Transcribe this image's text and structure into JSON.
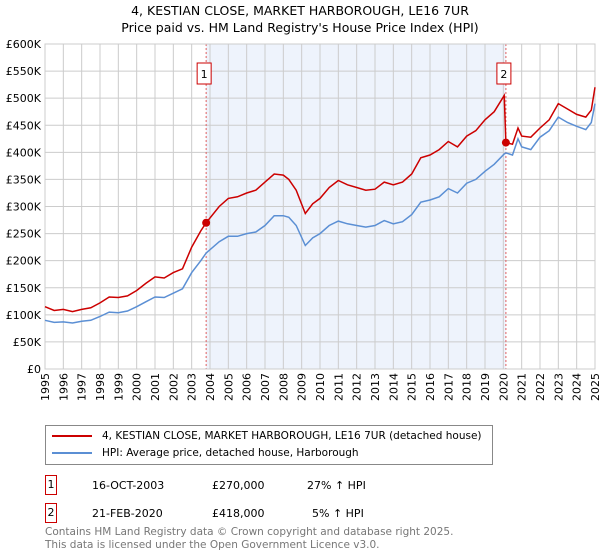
{
  "title_line1": "4, KESTIAN CLOSE, MARKET HARBOROUGH, LE16 7UR",
  "title_line2": "Price paid vs. HM Land Registry's House Price Index (HPI)",
  "chart_data": {
    "type": "line",
    "xlim": [
      1995,
      2025
    ],
    "ylim": [
      0,
      600000
    ],
    "x_ticks": [
      "1995",
      "1996",
      "1997",
      "1998",
      "1999",
      "2000",
      "2001",
      "2002",
      "2003",
      "2004",
      "2005",
      "2006",
      "2007",
      "2008",
      "2009",
      "2010",
      "2011",
      "2012",
      "2013",
      "2014",
      "2015",
      "2016",
      "2017",
      "2018",
      "2019",
      "2020",
      "2021",
      "2022",
      "2023",
      "2024",
      "2025"
    ],
    "y_ticks": [
      {
        "v": 0,
        "l": "£0"
      },
      {
        "v": 50000,
        "l": "£50K"
      },
      {
        "v": 100000,
        "l": "£100K"
      },
      {
        "v": 150000,
        "l": "£150K"
      },
      {
        "v": 200000,
        "l": "£200K"
      },
      {
        "v": 250000,
        "l": "£250K"
      },
      {
        "v": 300000,
        "l": "£300K"
      },
      {
        "v": 350000,
        "l": "£350K"
      },
      {
        "v": 400000,
        "l": "£400K"
      },
      {
        "v": 450000,
        "l": "£450K"
      },
      {
        "v": 500000,
        "l": "£500K"
      },
      {
        "v": 550000,
        "l": "£550K"
      },
      {
        "v": 600000,
        "l": "£600K"
      }
    ],
    "shaded_range": [
      2003.79,
      2020.14
    ],
    "series": [
      {
        "name": "4, KESTIAN CLOSE, MARKET HARBOROUGH, LE16 7UR (detached house)",
        "color": "#cc0000",
        "x": [
          1995,
          1995.5,
          1996,
          1996.5,
          1997,
          1997.5,
          1998,
          1998.5,
          1999,
          1999.5,
          2000,
          2000.5,
          2001,
          2001.5,
          2002,
          2002.5,
          2003,
          2003.5,
          2003.79,
          2004.5,
          2005,
          2005.5,
          2006,
          2006.5,
          2007,
          2007.5,
          2008,
          2008.3,
          2008.7,
          2009.2,
          2009.6,
          2010,
          2010.5,
          2011,
          2011.5,
          2012,
          2012.5,
          2013,
          2013.5,
          2014,
          2014.5,
          2015,
          2015.5,
          2016,
          2016.5,
          2017,
          2017.5,
          2018,
          2018.5,
          2019,
          2019.5,
          2020.05,
          2020.14,
          2020.5,
          2020.8,
          2021,
          2021.5,
          2022,
          2022.5,
          2023,
          2023.5,
          2024,
          2024.5,
          2024.8,
          2025
        ],
        "y": [
          115000,
          108000,
          110000,
          106000,
          110000,
          113000,
          122000,
          133000,
          132000,
          135000,
          145000,
          158000,
          170000,
          168000,
          178000,
          185000,
          225000,
          255000,
          270000,
          300000,
          315000,
          318000,
          325000,
          330000,
          345000,
          360000,
          358000,
          350000,
          330000,
          287000,
          305000,
          315000,
          335000,
          348000,
          340000,
          335000,
          330000,
          332000,
          345000,
          340000,
          345000,
          360000,
          390000,
          395000,
          405000,
          420000,
          410000,
          430000,
          440000,
          460000,
          475000,
          505000,
          418000,
          415000,
          445000,
          430000,
          428000,
          445000,
          460000,
          490000,
          480000,
          470000,
          465000,
          478000,
          520000
        ]
      },
      {
        "name": "HPI: Average price, detached house, Harborough",
        "color": "#5b8fd4",
        "x": [
          1995,
          1995.5,
          1996,
          1996.5,
          1997,
          1997.5,
          1998,
          1998.5,
          1999,
          1999.5,
          2000,
          2000.5,
          2001,
          2001.5,
          2002,
          2002.5,
          2003,
          2003.5,
          2003.79,
          2004.5,
          2005,
          2005.5,
          2006,
          2006.5,
          2007,
          2007.5,
          2008,
          2008.3,
          2008.7,
          2009.2,
          2009.6,
          2010,
          2010.5,
          2011,
          2011.5,
          2012,
          2012.5,
          2013,
          2013.5,
          2014,
          2014.5,
          2015,
          2015.5,
          2016,
          2016.5,
          2017,
          2017.5,
          2018,
          2018.5,
          2019,
          2019.5,
          2020.05,
          2020.14,
          2020.5,
          2020.8,
          2021,
          2021.5,
          2022,
          2022.5,
          2023,
          2023.5,
          2024,
          2024.5,
          2024.8,
          2025
        ],
        "y": [
          90000,
          86000,
          87000,
          85000,
          88000,
          90000,
          97000,
          105000,
          104000,
          107000,
          115000,
          124000,
          133000,
          132000,
          140000,
          148000,
          178000,
          200000,
          214000,
          235000,
          245000,
          245000,
          250000,
          253000,
          265000,
          283000,
          283000,
          280000,
          265000,
          228000,
          242000,
          250000,
          265000,
          273000,
          268000,
          265000,
          262000,
          265000,
          274000,
          268000,
          272000,
          285000,
          308000,
          312000,
          318000,
          333000,
          325000,
          343000,
          350000,
          365000,
          378000,
          397000,
          399000,
          395000,
          425000,
          410000,
          405000,
          428000,
          440000,
          465000,
          455000,
          448000,
          442000,
          455000,
          490000
        ]
      }
    ],
    "annotations": [
      {
        "label": "1",
        "x": 2003.79,
        "y": 270000
      },
      {
        "label": "2",
        "x": 2020.14,
        "y": 418000
      }
    ]
  },
  "legend": {
    "items": [
      "4, KESTIAN CLOSE, MARKET HARBOROUGH, LE16 7UR (detached house)",
      "HPI: Average price, detached house, Harborough"
    ]
  },
  "transactions": [
    {
      "n": "1",
      "date": "16-OCT-2003",
      "price": "£270,000",
      "hpi": "27% ↑ HPI"
    },
    {
      "n": "2",
      "date": "21-FEB-2020",
      "price": "£418,000",
      "hpi": "5% ↑ HPI"
    }
  ],
  "footer": {
    "line1": "Contains HM Land Registry data © Crown copyright and database right 2025.",
    "line2": "This data is licensed under the Open Government Licence v3.0."
  }
}
